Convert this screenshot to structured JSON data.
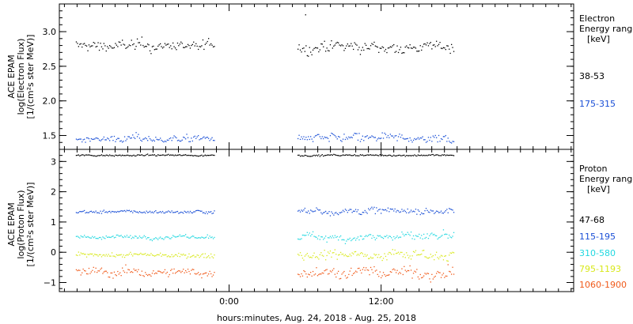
{
  "chart_data": [
    {
      "type": "scatter",
      "panel": "electron",
      "ylabel_lines": [
        "ACE EPAM",
        "log(Electron Flux)",
        "[1/(cm²s ster MeV)]"
      ],
      "ylim": [
        1.3,
        3.4
      ],
      "yticks": [
        "1.5",
        "2.0",
        "2.5",
        "3.0"
      ],
      "ytick_values": [
        1.5,
        2.0,
        2.5,
        3.0
      ],
      "legend_title": [
        "Electron",
        "Energy range",
        "[keV]"
      ],
      "series": [
        {
          "name": "38-53",
          "color": "#000000",
          "segments": [
            {
              "x_start": -12.1,
              "x_end": -1.2,
              "mean": 2.8,
              "spread": 0.06
            },
            {
              "x_start": 5.4,
              "x_end": 17.7,
              "mean": 2.78,
              "spread": 0.06
            }
          ],
          "outliers": [
            {
              "x": 6.0,
              "y": 3.25
            }
          ]
        },
        {
          "name": "175-315",
          "color": "#1a4fd6",
          "segments": [
            {
              "x_start": -12.1,
              "x_end": -1.2,
              "mean": 1.46,
              "spread": 0.04
            },
            {
              "x_start": 5.4,
              "x_end": 17.7,
              "mean": 1.46,
              "spread": 0.05
            }
          ],
          "outliers": []
        }
      ]
    },
    {
      "type": "scatter",
      "panel": "proton",
      "ylabel_lines": [
        "ACE EPAM",
        "log(Proton Flux)",
        "[1/(cm²s ster MeV)]"
      ],
      "ylim": [
        -1.3,
        3.4
      ],
      "yticks": [
        "−1",
        "0",
        "1",
        "2",
        "3"
      ],
      "ytick_values": [
        -1,
        0,
        1,
        2,
        3
      ],
      "legend_title": [
        "Proton",
        "Energy range",
        "[keV]"
      ],
      "series": [
        {
          "name": "47-68",
          "color": "#000000",
          "segments": [
            {
              "x_start": -12.1,
              "x_end": -1.2,
              "mean": 3.22,
              "spread": 0.02
            },
            {
              "x_start": 5.4,
              "x_end": 17.7,
              "mean": 3.22,
              "spread": 0.02
            }
          ],
          "outliers": []
        },
        {
          "name": "115-195",
          "color": "#1a4fd6",
          "segments": [
            {
              "x_start": -12.1,
              "x_end": -1.2,
              "mean": 1.35,
              "spread": 0.04
            },
            {
              "x_start": 5.4,
              "x_end": 17.7,
              "mean": 1.38,
              "spread": 0.08
            }
          ],
          "outliers": []
        },
        {
          "name": "310-580",
          "color": "#22d8e0",
          "segments": [
            {
              "x_start": -12.1,
              "x_end": -1.2,
              "mean": 0.52,
              "spread": 0.05
            },
            {
              "x_start": 5.4,
              "x_end": 17.7,
              "mean": 0.52,
              "spread": 0.1
            }
          ],
          "outliers": []
        },
        {
          "name": "795-1193",
          "color": "#d8e81a",
          "segments": [
            {
              "x_start": -12.1,
              "x_end": -1.2,
              "mean": -0.08,
              "spread": 0.06
            },
            {
              "x_start": 5.4,
              "x_end": 17.7,
              "mean": -0.05,
              "spread": 0.12
            }
          ],
          "outliers": []
        },
        {
          "name": "1060-1900",
          "color": "#f05a1a",
          "segments": [
            {
              "x_start": -12.1,
              "x_end": -1.2,
              "mean": -0.65,
              "spread": 0.12
            },
            {
              "x_start": 5.4,
              "x_end": 17.7,
              "mean": -0.65,
              "spread": 0.15
            }
          ],
          "outliers": []
        }
      ]
    }
  ],
  "x_axis": {
    "label": "hours:minutes, Aug. 24, 2018 - Aug. 25, 2018",
    "xlim": [
      -13.4,
      27.2
    ],
    "ticks": [
      {
        "value": 0,
        "label": "0:00"
      },
      {
        "value": 12,
        "label": "12:00"
      }
    ],
    "minor_step_hours": 1
  }
}
